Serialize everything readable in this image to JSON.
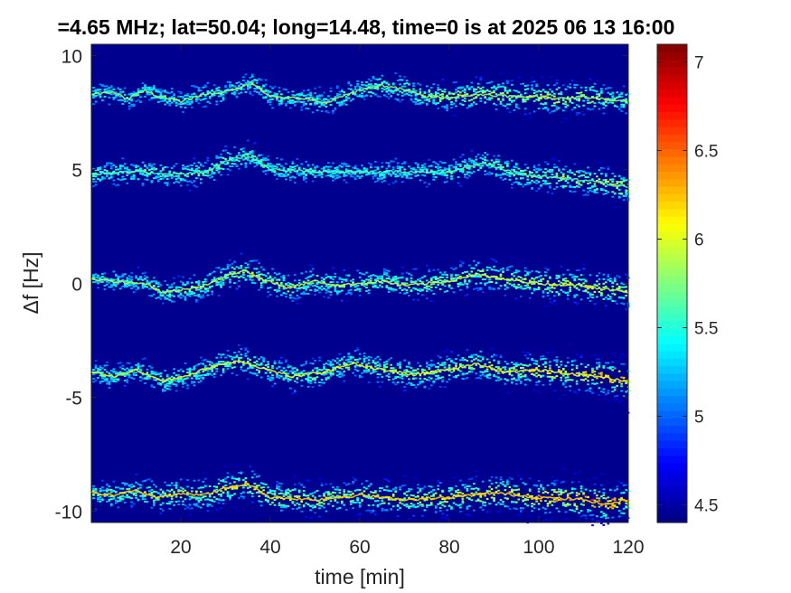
{
  "chart_data": {
    "type": "heatmap",
    "title": "=4.65 MHz;  lat=50.04; long=14.48, time=0 is at 2025 06 13 16:00",
    "xlabel": "time [min]",
    "ylabel": "Δf [Hz]",
    "xlim": [
      0,
      120
    ],
    "ylim": [
      -10.5,
      10.5
    ],
    "x_ticks": [
      20,
      40,
      60,
      80,
      100,
      120
    ],
    "x_tick_labels": [
      "20",
      "40",
      "60",
      "80",
      "100",
      "120"
    ],
    "y_ticks": [
      10,
      5,
      0,
      -5,
      -10
    ],
    "y_tick_labels": [
      "10",
      "5",
      "0",
      "-5",
      "-10"
    ],
    "colorbar": {
      "colormap": "jet",
      "range": [
        4.4,
        7.1
      ],
      "ticks": [
        4.5,
        5,
        5.5,
        6,
        6.5,
        7
      ],
      "tick_labels": [
        "4.5",
        "5",
        "5.5",
        "6",
        "6.5",
        "7"
      ]
    },
    "background_value": 4.4,
    "traces": [
      {
        "center_hz": 8.3,
        "points": [
          [
            0,
            8.3
          ],
          [
            5,
            8.4
          ],
          [
            8,
            8.1
          ],
          [
            12,
            8.5
          ],
          [
            15,
            8.2
          ],
          [
            20,
            8.0
          ],
          [
            25,
            8.3
          ],
          [
            30,
            8.4
          ],
          [
            36,
            8.8
          ],
          [
            40,
            8.2
          ],
          [
            48,
            8.1
          ],
          [
            52,
            7.9
          ],
          [
            56,
            8.2
          ],
          [
            60,
            8.5
          ],
          [
            65,
            8.7
          ],
          [
            70,
            8.5
          ],
          [
            75,
            8.2
          ],
          [
            80,
            8.2
          ],
          [
            88,
            8.3
          ],
          [
            95,
            8.2
          ],
          [
            100,
            8.2
          ],
          [
            105,
            8.1
          ],
          [
            110,
            8.2
          ],
          [
            115,
            8.1
          ],
          [
            120,
            8.0
          ]
        ],
        "intensity": [
          [
            0,
            5.6
          ],
          [
            60,
            5.8
          ],
          [
            85,
            6.2
          ],
          [
            110,
            6.3
          ],
          [
            120,
            5.8
          ]
        ]
      },
      {
        "center_hz": 4.9,
        "points": [
          [
            0,
            4.8
          ],
          [
            10,
            4.9
          ],
          [
            20,
            4.8
          ],
          [
            26,
            4.9
          ],
          [
            30,
            5.4
          ],
          [
            35,
            5.6
          ],
          [
            40,
            5.0
          ],
          [
            50,
            4.9
          ],
          [
            60,
            4.9
          ],
          [
            70,
            4.9
          ],
          [
            80,
            4.9
          ],
          [
            88,
            5.3
          ],
          [
            95,
            4.8
          ],
          [
            105,
            4.6
          ],
          [
            112,
            4.5
          ],
          [
            120,
            4.2
          ]
        ],
        "intensity": [
          [
            0,
            5.8
          ],
          [
            30,
            5.9
          ],
          [
            60,
            5.6
          ],
          [
            90,
            5.9
          ],
          [
            120,
            6.4
          ]
        ]
      },
      {
        "center_hz": 0.1,
        "points": [
          [
            0,
            0.2
          ],
          [
            5,
            0.1
          ],
          [
            12,
            0.0
          ],
          [
            16,
            -0.4
          ],
          [
            20,
            -0.3
          ],
          [
            25,
            -0.1
          ],
          [
            30,
            0.3
          ],
          [
            34,
            0.6
          ],
          [
            38,
            0.2
          ],
          [
            44,
            -0.2
          ],
          [
            50,
            0.1
          ],
          [
            55,
            -0.1
          ],
          [
            60,
            0.0
          ],
          [
            65,
            0.1
          ],
          [
            70,
            -0.1
          ],
          [
            80,
            0.1
          ],
          [
            86,
            0.4
          ],
          [
            92,
            0.2
          ],
          [
            100,
            0.0
          ],
          [
            110,
            -0.1
          ],
          [
            120,
            -0.4
          ]
        ],
        "intensity": [
          [
            0,
            5.6
          ],
          [
            35,
            6.1
          ],
          [
            60,
            5.9
          ],
          [
            90,
            6.2
          ],
          [
            120,
            6.4
          ]
        ]
      },
      {
        "center_hz": -4.0,
        "points": [
          [
            0,
            -3.9
          ],
          [
            5,
            -4.1
          ],
          [
            10,
            -3.8
          ],
          [
            16,
            -4.3
          ],
          [
            22,
            -4.0
          ],
          [
            28,
            -3.6
          ],
          [
            33,
            -3.4
          ],
          [
            38,
            -3.7
          ],
          [
            45,
            -4.1
          ],
          [
            52,
            -3.9
          ],
          [
            58,
            -3.5
          ],
          [
            65,
            -3.8
          ],
          [
            72,
            -4.0
          ],
          [
            80,
            -3.8
          ],
          [
            86,
            -3.5
          ],
          [
            92,
            -3.9
          ],
          [
            100,
            -3.8
          ],
          [
            108,
            -4.0
          ],
          [
            114,
            -4.1
          ],
          [
            120,
            -4.3
          ]
        ],
        "intensity": [
          [
            0,
            5.7
          ],
          [
            35,
            6.0
          ],
          [
            60,
            6.0
          ],
          [
            95,
            6.3
          ],
          [
            120,
            6.8
          ]
        ]
      },
      {
        "center_hz": -9.4,
        "points": [
          [
            0,
            -9.2
          ],
          [
            5,
            -9.3
          ],
          [
            10,
            -9.1
          ],
          [
            15,
            -9.4
          ],
          [
            20,
            -9.2
          ],
          [
            25,
            -9.3
          ],
          [
            30,
            -9.0
          ],
          [
            35,
            -8.8
          ],
          [
            40,
            -9.4
          ],
          [
            50,
            -9.5
          ],
          [
            60,
            -9.3
          ],
          [
            70,
            -9.5
          ],
          [
            80,
            -9.4
          ],
          [
            90,
            -9.2
          ],
          [
            100,
            -9.4
          ],
          [
            110,
            -9.5
          ],
          [
            115,
            -9.7
          ],
          [
            120,
            -9.5
          ]
        ],
        "intensity": [
          [
            0,
            5.9
          ],
          [
            30,
            6.3
          ],
          [
            60,
            6.2
          ],
          [
            90,
            6.5
          ],
          [
            112,
            6.9
          ],
          [
            120,
            6.7
          ]
        ]
      }
    ]
  }
}
